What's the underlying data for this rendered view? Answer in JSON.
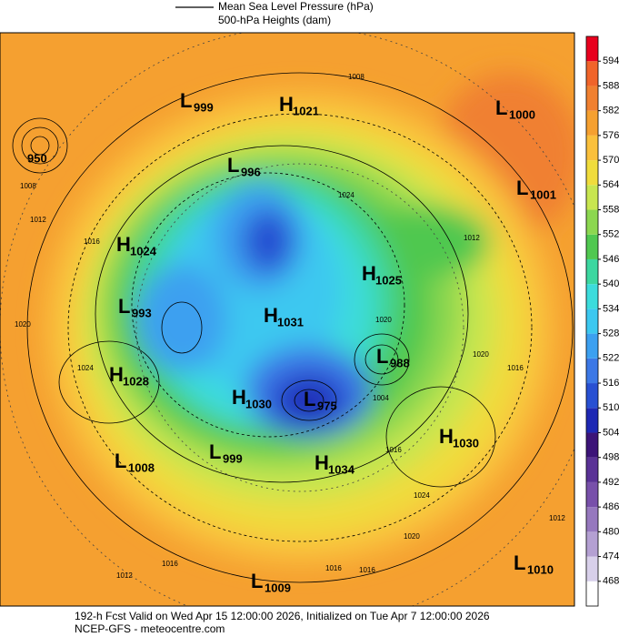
{
  "header": {
    "legend": [
      "Mean Sea Level Pressure (hPa)",
      "500-hPa Heights (dam)"
    ]
  },
  "centers": [
    {
      "letter": "L",
      "value": 999
    },
    {
      "letter": "H",
      "value": 1021
    },
    {
      "value": 950
    },
    {
      "letter": "L",
      "value": 1000
    },
    {
      "letter": "L",
      "value": 996
    },
    {
      "letter": "L",
      "value": 1001
    },
    {
      "letter": "H",
      "value": 1024
    },
    {
      "letter": "H",
      "value": 1025
    },
    {
      "letter": "L",
      "value": 993
    },
    {
      "letter": "H",
      "value": 1031
    },
    {
      "letter": "L",
      "value": 988
    },
    {
      "letter": "H",
      "value": 1028
    },
    {
      "letter": "H",
      "value": 1030
    },
    {
      "letter": "L",
      "value": 975
    },
    {
      "letter": "H",
      "value": 1030
    },
    {
      "letter": "L",
      "value": 1008
    },
    {
      "letter": "L",
      "value": 999
    },
    {
      "letter": "H",
      "value": 1034
    },
    {
      "letter": "L",
      "value": 1010
    },
    {
      "letter": "L",
      "value": 1009
    }
  ],
  "contour_labels": [
    1008,
    1008,
    1012,
    1016,
    1024,
    1012,
    1020,
    1020,
    1016,
    1004,
    1016,
    1024,
    1012,
    1016,
    1012,
    1016,
    1016,
    1020,
    1020,
    1024
  ],
  "colorbar": {
    "ticks": [
      468,
      474,
      480,
      486,
      492,
      498,
      504,
      510,
      516,
      522,
      528,
      534,
      540,
      546,
      552,
      558,
      564,
      570,
      576,
      582,
      588,
      594
    ],
    "colors": [
      "#ffffff",
      "#d8d0ea",
      "#b4a0d2",
      "#9678be",
      "#7850aa",
      "#5a3296",
      "#3c1478",
      "#1e28b4",
      "#2850d2",
      "#3c78e6",
      "#3ca0f0",
      "#3cc8f0",
      "#3cdcdc",
      "#3cd7a0",
      "#50c850",
      "#8cd750",
      "#c8e650",
      "#f0dc3c",
      "#fac03c",
      "#f5a030",
      "#f08030",
      "#f0642a",
      "#e8001e"
    ]
  },
  "footer": [
    "192-h Fcst Valid on Wed Apr 15 12:00:00 2026, Initialized on Tue Apr  7 12:00:00 2026",
    "NCEP-GFS  - meteocentre.com"
  ]
}
